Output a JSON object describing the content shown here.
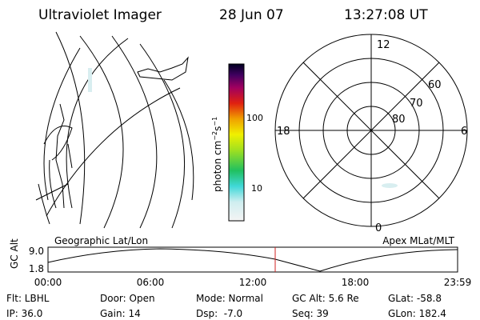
{
  "header": {
    "title": "Ultraviolet Imager",
    "date": "28 Jun 07",
    "time": "13:27:08 UT"
  },
  "colorbar": {
    "label_parts": [
      "photon cm",
      "−2",
      "s",
      "−1"
    ],
    "ticks": [
      "100",
      "10"
    ]
  },
  "polar": {
    "mlt_labels": [
      "12",
      "18",
      "6",
      "0"
    ],
    "lat_labels": [
      "60",
      "70",
      "80"
    ]
  },
  "altitude_panel": {
    "left_label": "Geographic Lat/Lon",
    "right_label": "Apex MLat/MLT",
    "y_label": "GC Alt",
    "y_ticks": [
      "9.0",
      "1.8"
    ],
    "x_ticks": [
      "00:00",
      "06:00",
      "12:00",
      "18:00",
      "23:59"
    ]
  },
  "status": {
    "rows": [
      [
        "Flt: LBHL",
        "Door: Open",
        "Mode: Normal",
        "GC Alt: 5.6 Re",
        "GLat: -58.8"
      ],
      [
        "IP: 36.0",
        "Gain: 14",
        "Dsp:  -7.0",
        "Seq: 39",
        "GLon: 182.4"
      ]
    ]
  }
}
